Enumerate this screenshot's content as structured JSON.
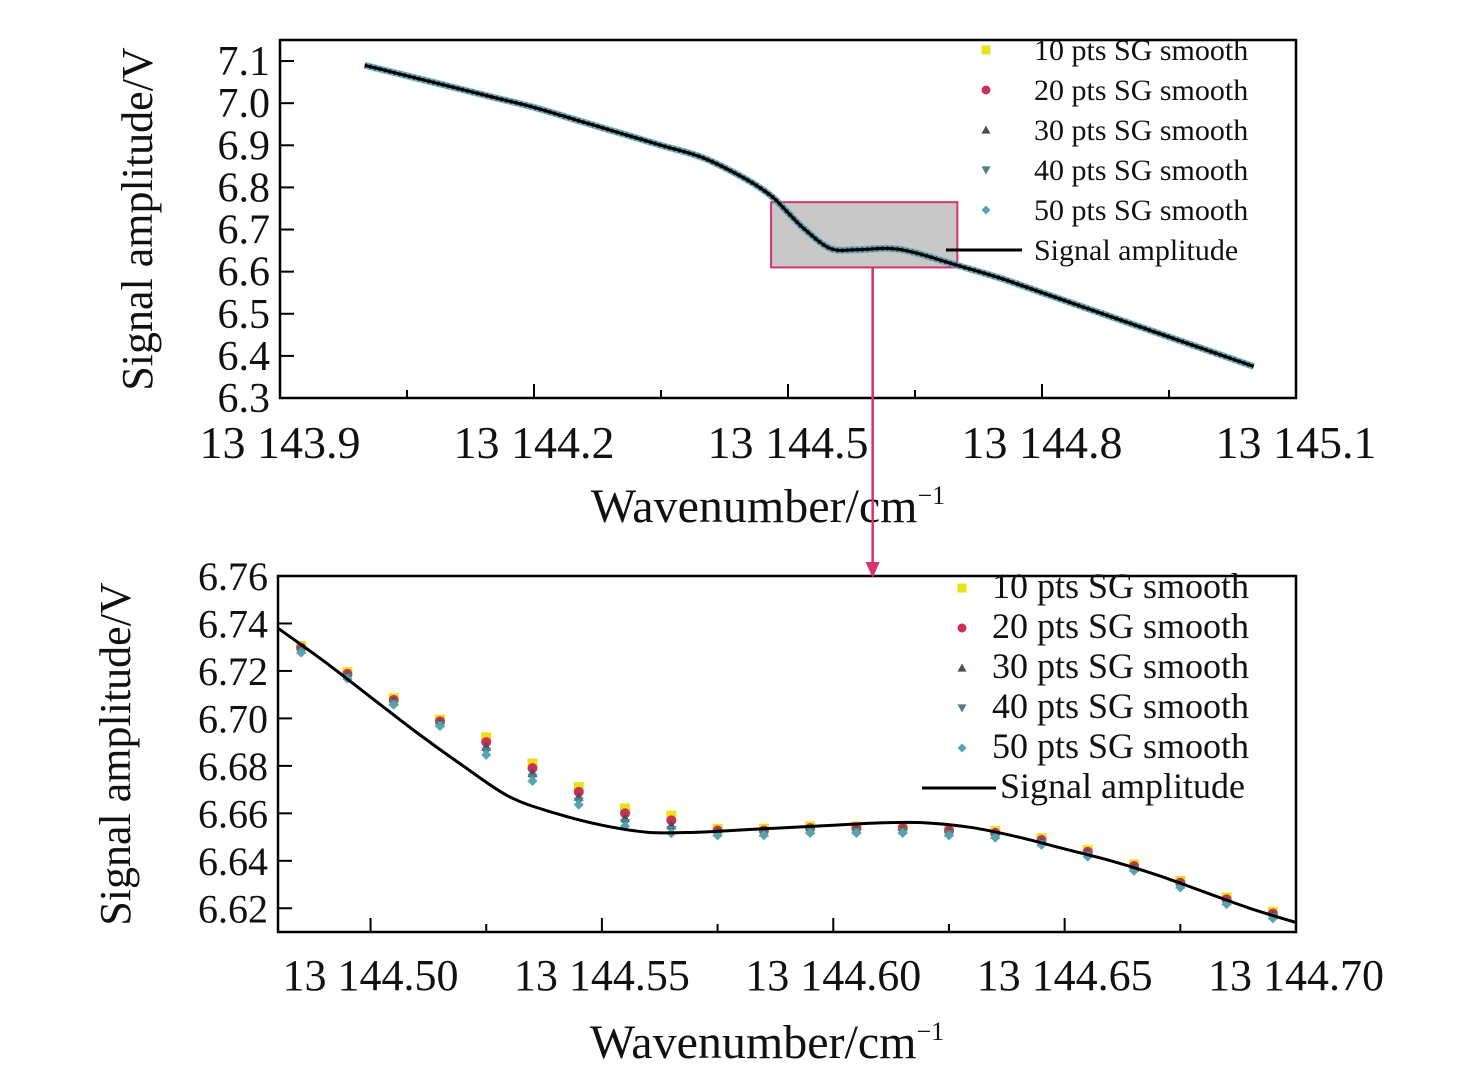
{
  "chart_data": [
    {
      "type": "line",
      "xlabel": "Wavenumber/cm",
      "xlabel_sup": "−1",
      "ylabel": "Signal amplitude/V",
      "xlim": [
        13143.9,
        13145.1
      ],
      "ylim": [
        6.3,
        7.15
      ],
      "x_ticks": [
        13143.9,
        13144.2,
        13144.5,
        13144.8,
        13145.1
      ],
      "x_tick_labels": [
        "13 143.9",
        "13 144.2",
        "13 144.5",
        "13 144.8",
        "13 145.1"
      ],
      "y_ticks": [
        6.3,
        6.4,
        6.5,
        6.6,
        6.7,
        6.8,
        6.9,
        7.0,
        7.1
      ],
      "y_tick_labels": [
        "6.3",
        "6.4",
        "6.5",
        "6.6",
        "6.7",
        "6.8",
        "6.9",
        "7.0",
        "7.1"
      ],
      "legend_position": "top-right",
      "zoom_box": {
        "x": [
          13144.48,
          13144.7
        ],
        "y": [
          6.61,
          6.765
        ],
        "color": "#d6336c"
      },
      "series": [
        {
          "name": "10 pts SG smooth",
          "marker": "square",
          "color": "#e8e21a"
        },
        {
          "name": "20 pts SG smooth",
          "marker": "circle",
          "color": "#cc2e5a"
        },
        {
          "name": "30 pts SG smooth",
          "marker": "triangle-up",
          "color": "#4a4f5c"
        },
        {
          "name": "40 pts SG smooth",
          "marker": "triangle-down",
          "color": "#4d7f86"
        },
        {
          "name": "50 pts SG smooth",
          "marker": "diamond",
          "color": "#55a4b2"
        },
        {
          "name": "Signal amplitude",
          "marker": "line",
          "color": "#000000"
        }
      ],
      "x": [
        13144.0,
        13144.05,
        13144.1,
        13144.15,
        13144.2,
        13144.25,
        13144.3,
        13144.35,
        13144.4,
        13144.45,
        13144.48,
        13144.5,
        13144.52,
        13144.55,
        13144.58,
        13144.62,
        13144.65,
        13144.7,
        13144.75,
        13144.8,
        13144.85,
        13144.9,
        13144.95,
        13145.0,
        13145.05
      ],
      "y": [
        7.09,
        7.065,
        7.04,
        7.015,
        6.99,
        6.96,
        6.93,
        6.9,
        6.87,
        6.82,
        6.78,
        6.74,
        6.7,
        6.655,
        6.652,
        6.655,
        6.645,
        6.615,
        6.585,
        6.55,
        6.515,
        6.48,
        6.445,
        6.41,
        6.375
      ]
    },
    {
      "type": "line",
      "xlabel": "Wavenumber/cm",
      "xlabel_sup": "−1",
      "ylabel": "Signal amplitude/V",
      "xlim": [
        13144.48,
        13144.7
      ],
      "ylim": [
        6.61,
        6.76
      ],
      "x_ticks": [
        13144.5,
        13144.55,
        13144.6,
        13144.65,
        13144.7
      ],
      "x_tick_labels": [
        "13 144.50",
        "13 144.55",
        "13 144.60",
        "13 144.65",
        "13 144.70"
      ],
      "y_ticks": [
        6.62,
        6.64,
        6.66,
        6.68,
        6.7,
        6.72,
        6.74,
        6.76
      ],
      "y_tick_labels": [
        "6.62",
        "6.64",
        "6.66",
        "6.68",
        "6.70",
        "6.72",
        "6.74",
        "6.76"
      ],
      "legend_position": "top-right",
      "series": [
        {
          "name": "10 pts SG smooth",
          "marker": "square",
          "color": "#e8e21a"
        },
        {
          "name": "20 pts SG smooth",
          "marker": "circle",
          "color": "#cc2e5a"
        },
        {
          "name": "30 pts SG smooth",
          "marker": "triangle-up",
          "color": "#4a4f5c"
        },
        {
          "name": "40 pts SG smooth",
          "marker": "triangle-down",
          "color": "#4d7f86"
        },
        {
          "name": "50 pts SG smooth",
          "marker": "diamond",
          "color": "#55a4b2"
        },
        {
          "name": "Signal amplitude",
          "marker": "line",
          "color": "#000000"
        }
      ],
      "x": [
        13144.48,
        13144.49,
        13144.5,
        13144.51,
        13144.52,
        13144.53,
        13144.54,
        13144.55,
        13144.56,
        13144.57,
        13144.58,
        13144.59,
        13144.6,
        13144.61,
        13144.62,
        13144.63,
        13144.64,
        13144.65,
        13144.66,
        13144.67,
        13144.68,
        13144.69,
        13144.7
      ],
      "y": [
        6.738,
        6.724,
        6.709,
        6.694,
        6.68,
        6.667,
        6.66,
        6.655,
        6.652,
        6.652,
        6.653,
        6.654,
        6.655,
        6.656,
        6.656,
        6.654,
        6.65,
        6.645,
        6.64,
        6.634,
        6.627,
        6.62,
        6.614
      ],
      "marker_x": [
        13144.485,
        13144.495,
        13144.505,
        13144.515,
        13144.525,
        13144.535,
        13144.545,
        13144.555,
        13144.565,
        13144.575,
        13144.585,
        13144.595,
        13144.605,
        13144.615,
        13144.625,
        13144.635,
        13144.645,
        13144.655,
        13144.665,
        13144.675,
        13144.685,
        13144.695
      ],
      "marker_y": [
        6.729,
        6.718,
        6.707,
        6.698,
        6.688,
        6.677,
        6.667,
        6.658,
        6.655,
        6.652,
        6.652,
        6.653,
        6.653,
        6.653,
        6.652,
        6.651,
        6.648,
        6.643,
        6.637,
        6.63,
        6.623,
        6.617
      ]
    }
  ]
}
